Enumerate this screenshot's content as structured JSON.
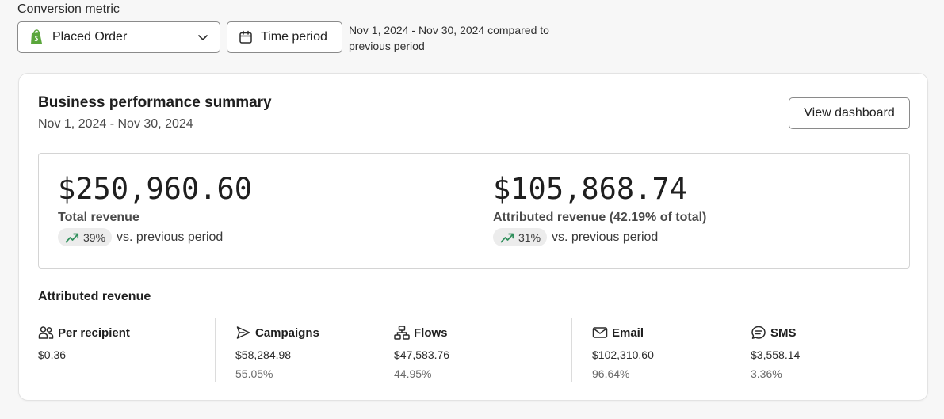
{
  "filters": {
    "conversion_label": "Conversion metric",
    "metric_select_value": "Placed Order",
    "time_period_label": "Time period",
    "period_note": "Nov 1, 2024 - Nov 30, 2024 compared to previous period"
  },
  "card": {
    "title": "Business performance summary",
    "subtitle": "Nov 1, 2024 - Nov 30, 2024",
    "view_button": "View dashboard"
  },
  "summary": {
    "total": {
      "value": "$250,960.60",
      "label": "Total revenue",
      "change": "39%",
      "change_text": "vs. previous period"
    },
    "attributed": {
      "value": "$105,868.74",
      "label": "Attributed revenue (42.19% of total)",
      "change": "31%",
      "change_text": "vs. previous period"
    }
  },
  "attributed_section": {
    "title": "Attributed revenue",
    "stats": [
      {
        "label": "Per recipient",
        "value": "$0.36",
        "pct": ""
      },
      {
        "label": "Campaigns",
        "value": "$58,284.98",
        "pct": "55.05%"
      },
      {
        "label": "Flows",
        "value": "$47,583.76",
        "pct": "44.95%"
      },
      {
        "label": "Email",
        "value": "$102,310.60",
        "pct": "96.64%"
      },
      {
        "label": "SMS",
        "value": "$3,558.14",
        "pct": "3.36%"
      }
    ]
  },
  "colors": {
    "shopify_green": "#5aa63b",
    "trend_green": "#2f8f5b"
  },
  "icons": [
    "shopify-icon",
    "chevron-down-icon",
    "calendar-icon",
    "trend-up-icon",
    "people-icon",
    "send-icon",
    "flow-icon",
    "mail-icon",
    "sms-icon"
  ]
}
